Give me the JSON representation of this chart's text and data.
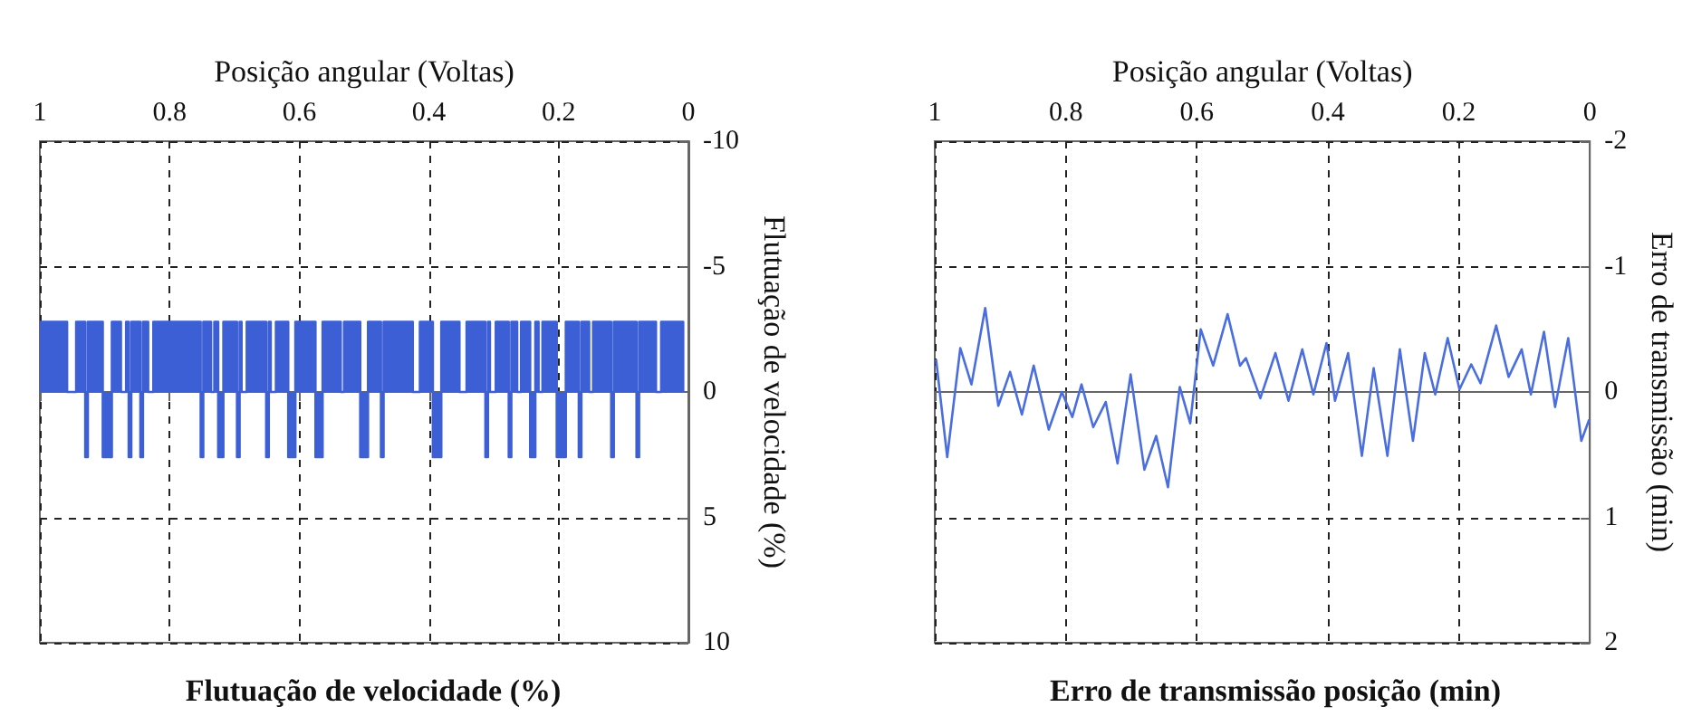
{
  "chart_data": [
    {
      "type": "area",
      "title": "Flutuação de velocidade (%)",
      "xlabel": "Posição angular (Voltas)",
      "ylabel": "Flutuação de velocidade (%)",
      "xlim": [
        1,
        0
      ],
      "xticks": [
        0,
        0.2,
        0.4,
        0.6,
        0.8,
        1
      ],
      "ylim": [
        10,
        -10
      ],
      "yticks": [
        -10,
        -5,
        0,
        5,
        10
      ],
      "grid": true,
      "marker": "none",
      "line_style": "solid",
      "series": [
        {
          "color": "#3d5fd6",
          "x": [
            0.008,
            0.008,
            0.042,
            0.042,
            0.05,
            0.05,
            0.076,
            0.076,
            0.08,
            0.08,
            0.115,
            0.115,
            0.119,
            0.119,
            0.147,
            0.147,
            0.153,
            0.153,
            0.165,
            0.165,
            0.169,
            0.169,
            0.189,
            0.189,
            0.203,
            0.203,
            0.225,
            0.225,
            0.231,
            0.231,
            0.236,
            0.236,
            0.244,
            0.244,
            0.258,
            0.258,
            0.264,
            0.264,
            0.273,
            0.273,
            0.277,
            0.277,
            0.297,
            0.297,
            0.306,
            0.306,
            0.309,
            0.309,
            0.313,
            0.313,
            0.342,
            0.342,
            0.353,
            0.353,
            0.381,
            0.381,
            0.394,
            0.394,
            0.414,
            0.414,
            0.425,
            0.425,
            0.47,
            0.47,
            0.474,
            0.474,
            0.494,
            0.494,
            0.506,
            0.506,
            0.531,
            0.531,
            0.536,
            0.536,
            0.564,
            0.564,
            0.575,
            0.575,
            0.606,
            0.606,
            0.617,
            0.617,
            0.636,
            0.636,
            0.644,
            0.644,
            0.647,
            0.647,
            0.651,
            0.651,
            0.681,
            0.681,
            0.689,
            0.689,
            0.692,
            0.692,
            0.696,
            0.696,
            0.717,
            0.717,
            0.725,
            0.725,
            0.731,
            0.731,
            0.736,
            0.736,
            0.748,
            0.748,
            0.752,
            0.752,
            0.825,
            0.825,
            0.833,
            0.833,
            0.841,
            0.841,
            0.845,
            0.845,
            0.859,
            0.859,
            0.863,
            0.863,
            0.867,
            0.867,
            0.875,
            0.875,
            0.889,
            0.889,
            0.903,
            0.903,
            0.926,
            0.926,
            0.93,
            0.93,
            0.944,
            0.944,
            0.958,
            0.958,
            1
          ],
          "values": [
            0,
            -2.8,
            -2.8,
            0,
            0,
            -2.8,
            -2.8,
            2.6,
            2.6,
            -2.8,
            -2.8,
            2.6,
            2.6,
            -2.8,
            -2.8,
            0,
            0,
            -2.8,
            -2.8,
            2.6,
            2.6,
            -2.8,
            -2.8,
            2.6,
            2.6,
            -2.8,
            -2.8,
            0,
            0,
            -2.8,
            -2.8,
            2.6,
            2.6,
            -2.8,
            -2.8,
            0,
            0,
            -2.8,
            -2.8,
            2.6,
            2.6,
            -2.8,
            -2.8,
            0,
            0,
            -2.8,
            -2.8,
            2.6,
            2.6,
            -2.8,
            -2.8,
            0,
            0,
            -2.8,
            -2.8,
            2.6,
            2.6,
            -2.8,
            -2.8,
            0,
            0,
            -2.8,
            -2.8,
            2.6,
            2.6,
            -2.8,
            -2.8,
            2.6,
            2.6,
            -2.8,
            -2.8,
            0,
            0,
            -2.8,
            -2.8,
            2.6,
            2.6,
            -2.8,
            -2.8,
            2.6,
            2.6,
            -2.8,
            -2.8,
            0,
            0,
            -2.8,
            -2.8,
            2.6,
            2.6,
            -2.8,
            -2.8,
            0,
            0,
            -2.8,
            -2.8,
            2.6,
            2.6,
            -2.8,
            -2.8,
            2.6,
            2.6,
            -2.8,
            -2.8,
            0,
            0,
            -2.8,
            -2.8,
            2.6,
            2.6,
            -2.8,
            -2.8,
            0,
            0,
            -2.8,
            -2.8,
            2.6,
            2.6,
            -2.8,
            -2.8,
            2.6,
            2.6,
            -2.8,
            -2.8,
            0,
            0,
            -2.8,
            -2.8,
            2.6,
            2.6,
            -2.8,
            -2.8,
            2.6,
            2.6,
            -2.8,
            -2.8,
            0,
            0,
            -2.8,
            -2.8
          ]
        }
      ]
    },
    {
      "type": "line",
      "title": "Erro de transmissão posição (min)",
      "xlabel": "Posição angular (Voltas)",
      "ylabel": "Erro de transmissão (min)",
      "xlim": [
        1,
        0
      ],
      "xticks": [
        0,
        0.2,
        0.4,
        0.6,
        0.8,
        1
      ],
      "ylim": [
        2,
        -2
      ],
      "yticks": [
        -2,
        -1,
        0,
        1,
        2
      ],
      "grid": true,
      "marker": "none",
      "line_style": "solid",
      "series": [
        {
          "color": "#4a6ee0",
          "x": [
            0.001,
            0.013,
            0.033,
            0.053,
            0.07,
            0.09,
            0.104,
            0.124,
            0.143,
            0.167,
            0.181,
            0.199,
            0.217,
            0.236,
            0.252,
            0.27,
            0.29,
            0.309,
            0.33,
            0.348,
            0.369,
            0.389,
            0.402,
            0.422,
            0.439,
            0.46,
            0.48,
            0.503,
            0.525,
            0.534,
            0.553,
            0.575,
            0.594,
            0.61,
            0.626,
            0.644,
            0.662,
            0.68,
            0.701,
            0.721,
            0.739,
            0.758,
            0.776,
            0.79,
            0.806,
            0.826,
            0.849,
            0.867,
            0.885,
            0.903,
            0.923,
            0.944,
            0.961,
            0.981,
            0.998
          ],
          "values": [
            0.22,
            0.39,
            -0.43,
            0.12,
            -0.48,
            0.02,
            -0.34,
            -0.12,
            -0.53,
            -0.07,
            -0.22,
            -0.02,
            -0.43,
            0.02,
            -0.31,
            0.39,
            -0.34,
            0.51,
            -0.19,
            0.51,
            -0.31,
            0.07,
            -0.39,
            0.02,
            -0.34,
            0.07,
            -0.31,
            0.05,
            -0.27,
            -0.21,
            -0.62,
            -0.21,
            -0.5,
            0.25,
            -0.04,
            0.76,
            0.35,
            0.62,
            -0.14,
            0.57,
            0.08,
            0.28,
            -0.06,
            0.2,
            0,
            0.3,
            -0.21,
            0.18,
            -0.16,
            0.11,
            -0.67,
            -0.06,
            -0.35,
            0.52,
            -0.26
          ]
        }
      ]
    }
  ]
}
